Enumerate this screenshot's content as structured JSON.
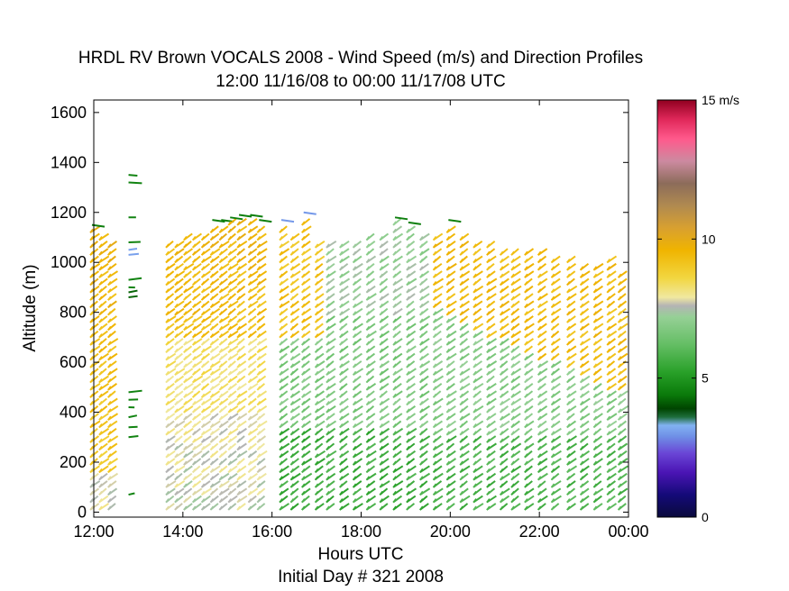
{
  "chart_data": {
    "type": "scatter",
    "title": "HRDL RV Brown VOCALS 2008 - Wind Speed (m/s) and Direction Profiles",
    "subtitle": "12:00 11/16/08 to 00:00 11/17/08  UTC",
    "xlabel": "Hours UTC",
    "xlabel2": "Initial Day # 321  2008",
    "ylabel": "Altitude (m)",
    "xlim": [
      12.0,
      24.0
    ],
    "ylim": [
      -20,
      1650
    ],
    "x_ticks": [
      12,
      14,
      16,
      18,
      20,
      22,
      24
    ],
    "x_tick_labels": [
      "12:00",
      "14:00",
      "16:00",
      "18:00",
      "20:00",
      "22:00",
      "00:00"
    ],
    "y_ticks": [
      0,
      200,
      400,
      600,
      800,
      1000,
      1200,
      1400,
      1600
    ],
    "y_tick_labels": [
      "0",
      "200",
      "400",
      "600",
      "800",
      "1000",
      "1200",
      "1400",
      "1600"
    ],
    "grid": false,
    "colorbar": {
      "range": [
        0,
        15
      ],
      "ticks": [
        0,
        5,
        10,
        15
      ],
      "tick_labels": [
        "0",
        "5",
        "10",
        "15 m/s"
      ],
      "stops": [
        {
          "v": 0.0,
          "color": "#0a0a3c"
        },
        {
          "v": 0.8,
          "color": "#140a78"
        },
        {
          "v": 1.6,
          "color": "#4a14b4"
        },
        {
          "v": 2.3,
          "color": "#6a46d6"
        },
        {
          "v": 2.9,
          "color": "#6f8fe6"
        },
        {
          "v": 3.3,
          "color": "#82b2f2"
        },
        {
          "v": 3.6,
          "color": "#1e6e3c"
        },
        {
          "v": 3.9,
          "color": "#004400"
        },
        {
          "v": 4.4,
          "color": "#0a7a0a"
        },
        {
          "v": 5.2,
          "color": "#28a028"
        },
        {
          "v": 6.2,
          "color": "#64be64"
        },
        {
          "v": 7.2,
          "color": "#96d096"
        },
        {
          "v": 7.6,
          "color": "#b4b4b4"
        },
        {
          "v": 7.9,
          "color": "#f0e8a0"
        },
        {
          "v": 8.6,
          "color": "#f2d640"
        },
        {
          "v": 9.6,
          "color": "#f0b400"
        },
        {
          "v": 10.4,
          "color": "#d8a030"
        },
        {
          "v": 11.2,
          "color": "#b08a50"
        },
        {
          "v": 12.0,
          "color": "#8c6c5a"
        },
        {
          "v": 12.8,
          "color": "#cc8aa0"
        },
        {
          "v": 13.6,
          "color": "#ff5a8c"
        },
        {
          "v": 14.3,
          "color": "#e0285a"
        },
        {
          "v": 15.0,
          "color": "#900020"
        }
      ]
    },
    "profiles": [
      {
        "t": 12.0,
        "top": 1130
      },
      {
        "t": 12.2,
        "top": 1100
      },
      {
        "t": 12.4,
        "top": 1090
      },
      {
        "t": 12.78,
        "top": 1360,
        "sparse": true
      },
      {
        "t": 13.7,
        "top": 1090
      },
      {
        "t": 13.9,
        "top": 1080
      },
      {
        "t": 14.1,
        "top": 1120
      },
      {
        "t": 14.3,
        "top": 1110
      },
      {
        "t": 14.5,
        "top": 1100
      },
      {
        "t": 14.7,
        "top": 1150
      },
      {
        "t": 14.9,
        "top": 1150
      },
      {
        "t": 15.1,
        "top": 1160
      },
      {
        "t": 15.3,
        "top": 1170
      },
      {
        "t": 15.55,
        "top": 1170
      },
      {
        "t": 15.75,
        "top": 1150
      },
      {
        "t": 16.25,
        "top": 1150
      },
      {
        "t": 16.5,
        "top": 1110
      },
      {
        "t": 16.75,
        "top": 1180
      },
      {
        "t": 17.05,
        "top": 1090
      },
      {
        "t": 17.3,
        "top": 1070
      },
      {
        "t": 17.6,
        "top": 1080
      },
      {
        "t": 17.9,
        "top": 1090
      },
      {
        "t": 18.2,
        "top": 1120
      },
      {
        "t": 18.5,
        "top": 1100
      },
      {
        "t": 18.8,
        "top": 1160
      },
      {
        "t": 19.1,
        "top": 1140
      },
      {
        "t": 19.4,
        "top": 1110
      },
      {
        "t": 19.7,
        "top": 1100
      },
      {
        "t": 20.0,
        "top": 1150
      },
      {
        "t": 20.3,
        "top": 1120
      },
      {
        "t": 20.6,
        "top": 1080
      },
      {
        "t": 20.9,
        "top": 1090
      },
      {
        "t": 21.2,
        "top": 1060
      },
      {
        "t": 21.45,
        "top": 1060
      },
      {
        "t": 21.75,
        "top": 1050
      },
      {
        "t": 22.05,
        "top": 1040
      },
      {
        "t": 22.35,
        "top": 1020
      },
      {
        "t": 22.7,
        "top": 1020
      },
      {
        "t": 23.0,
        "top": 1000
      },
      {
        "t": 23.3,
        "top": 990
      },
      {
        "t": 23.6,
        "top": 1010
      },
      {
        "t": 23.85,
        "top": 960
      }
    ]
  }
}
